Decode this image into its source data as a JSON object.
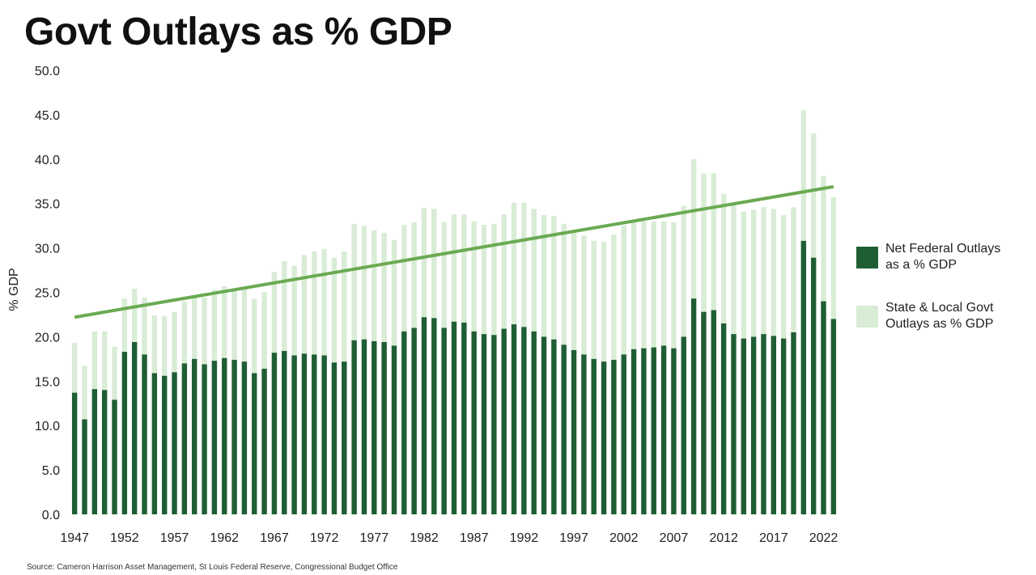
{
  "title": "Govt Outlays as % GDP",
  "source": "Source: Cameron Harrison Asset Management, St Louis Federal Reserve, Congressional Budget Office",
  "colors": {
    "federal": "#1f5e34",
    "state_local": "#d9ecd6",
    "trend": "#6aaa52"
  },
  "chart_data": {
    "type": "bar",
    "stacked": true,
    "title": "Govt Outlays as % GDP",
    "xlabel": "",
    "ylabel": "% GDP",
    "ylim": [
      0,
      50
    ],
    "yticks": [
      "0.0",
      "5.0",
      "10.0",
      "15.0",
      "20.0",
      "25.0",
      "30.0",
      "35.0",
      "40.0",
      "45.0",
      "50.0"
    ],
    "xticks": [
      "1947",
      "1952",
      "1957",
      "1962",
      "1967",
      "1972",
      "1977",
      "1982",
      "1987",
      "1992",
      "1997",
      "2002",
      "2007",
      "2012",
      "2017",
      "2022"
    ],
    "legend_position": "right",
    "categories": [
      1947,
      1948,
      1949,
      1950,
      1951,
      1952,
      1953,
      1954,
      1955,
      1956,
      1957,
      1958,
      1959,
      1960,
      1961,
      1962,
      1963,
      1964,
      1965,
      1966,
      1967,
      1968,
      1969,
      1970,
      1971,
      1972,
      1973,
      1974,
      1975,
      1976,
      1977,
      1978,
      1979,
      1980,
      1981,
      1982,
      1983,
      1984,
      1985,
      1986,
      1987,
      1988,
      1989,
      1990,
      1991,
      1992,
      1993,
      1994,
      1995,
      1996,
      1997,
      1998,
      1999,
      2000,
      2001,
      2002,
      2003,
      2004,
      2005,
      2006,
      2007,
      2008,
      2009,
      2010,
      2011,
      2012,
      2013,
      2014,
      2015,
      2016,
      2017,
      2018,
      2019,
      2020,
      2021,
      2022,
      2023
    ],
    "series": [
      {
        "name": "Net Federal Outlays as a % GDP",
        "legend_lines": [
          "Net Federal Outlays",
          "as a % GDP"
        ],
        "values": [
          13.7,
          10.7,
          14.1,
          14.0,
          12.9,
          18.3,
          19.4,
          18.0,
          15.9,
          15.6,
          16.0,
          17.0,
          17.5,
          16.9,
          17.3,
          17.6,
          17.4,
          17.2,
          15.9,
          16.4,
          18.2,
          18.4,
          17.9,
          18.1,
          18.0,
          17.9,
          17.1,
          17.2,
          19.6,
          19.7,
          19.5,
          19.4,
          19.0,
          20.6,
          21.0,
          22.2,
          22.1,
          21.0,
          21.7,
          21.6,
          20.6,
          20.3,
          20.2,
          20.9,
          21.4,
          21.1,
          20.6,
          20.0,
          19.7,
          19.1,
          18.5,
          18.0,
          17.5,
          17.2,
          17.4,
          18.0,
          18.6,
          18.7,
          18.8,
          19.0,
          18.7,
          20.0,
          24.3,
          22.8,
          23.0,
          21.5,
          20.3,
          19.8,
          20.0,
          20.3,
          20.1,
          19.8,
          20.5,
          30.8,
          28.9,
          24.0,
          22.0
        ]
      },
      {
        "name": "State & Local Govt Outlays as % GDP",
        "legend_lines": [
          "State & Local Govt",
          "Outlays as % GDP"
        ],
        "values": [
          5.6,
          6.0,
          6.5,
          6.6,
          6.0,
          6.0,
          6.0,
          6.4,
          6.5,
          6.7,
          6.8,
          7.0,
          7.1,
          7.5,
          8.0,
          8.1,
          8.0,
          8.3,
          8.4,
          8.6,
          9.1,
          10.1,
          10.1,
          11.1,
          11.6,
          12.0,
          11.8,
          12.4,
          13.1,
          12.8,
          12.5,
          12.3,
          11.9,
          12.0,
          11.9,
          12.3,
          12.3,
          11.9,
          12.1,
          12.2,
          12.4,
          12.3,
          12.5,
          12.9,
          13.7,
          14.0,
          13.8,
          13.7,
          13.9,
          13.6,
          13.3,
          13.4,
          13.3,
          13.5,
          14.1,
          14.5,
          14.5,
          14.3,
          14.2,
          14.0,
          14.2,
          14.7,
          15.7,
          15.6,
          15.4,
          14.6,
          14.6,
          14.3,
          14.3,
          14.3,
          14.3,
          13.9,
          14.1,
          14.7,
          14.0,
          14.1,
          13.7
        ]
      }
    ],
    "trendline": {
      "x": [
        1947,
        2023
      ],
      "y": [
        22.2,
        36.9
      ]
    }
  }
}
